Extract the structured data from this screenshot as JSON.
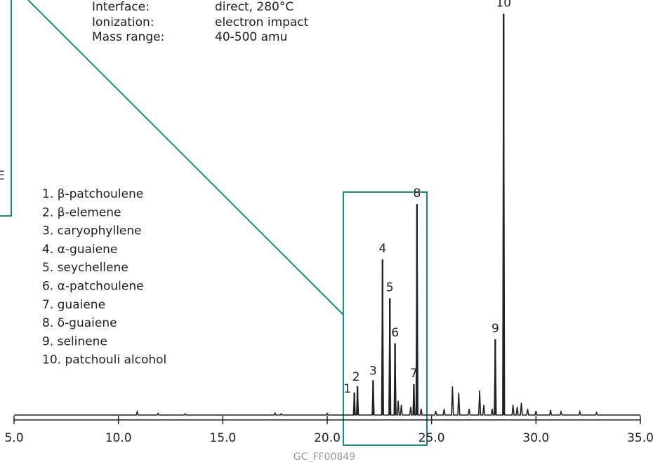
{
  "parameters": [
    {
      "label": "Interface:",
      "value": "direct, 280°C"
    },
    {
      "label": "Ionization:",
      "value": "electron impact"
    },
    {
      "label": "Mass range:",
      "value": "40-500 amu"
    }
  ],
  "side_tick_label": "E",
  "legend": [
    "1. β-patchoulene",
    "2. β-elemene",
    "3. caryophyllene",
    "4. α-guaiene",
    "5. seychellene",
    "6. α-patchoulene",
    "7. guaiene",
    "8. δ-guaiene",
    "9. selinene",
    "10. patchouli alcohol"
  ],
  "watermark": "GC_FF00849",
  "colors": {
    "trace": "#222222",
    "highlight_box": "#1f8a7a"
  },
  "chart_data": {
    "type": "line",
    "title": "",
    "xlabel": "",
    "ylabel": "",
    "xlim": [
      5.0,
      35.0
    ],
    "ylim": [
      0,
      100
    ],
    "xticks": [
      "5.0",
      "10.0",
      "15.0",
      "20.0",
      "25.0",
      "30.0",
      "35.0"
    ],
    "tick_values": [
      5,
      10,
      15,
      20,
      25,
      30,
      35
    ],
    "grid": false,
    "peaks": [
      {
        "label": "1",
        "rt": 21.3,
        "height": 5.5
      },
      {
        "label": "2",
        "rt": 21.45,
        "height": 7.0
      },
      {
        "label": "3",
        "rt": 22.2,
        "height": 8.5
      },
      {
        "label": "4",
        "rt": 22.65,
        "height": 38.0
      },
      {
        "label": "5",
        "rt": 23.0,
        "height": 28.5
      },
      {
        "label": "6",
        "rt": 23.25,
        "height": 17.5
      },
      {
        "label": "7",
        "rt": 24.15,
        "height": 7.5
      },
      {
        "label": "8",
        "rt": 24.3,
        "height": 51.5
      },
      {
        "label": "9",
        "rt": 28.05,
        "height": 18.5
      },
      {
        "label": "10",
        "rt": 28.45,
        "height": 98.0
      }
    ],
    "minor_peaks": [
      {
        "rt": 10.9,
        "height": 0.8
      },
      {
        "rt": 11.9,
        "height": 0.4
      },
      {
        "rt": 13.2,
        "height": 0.3
      },
      {
        "rt": 17.5,
        "height": 0.5
      },
      {
        "rt": 17.8,
        "height": 0.3
      },
      {
        "rt": 20.0,
        "height": 0.4
      },
      {
        "rt": 23.4,
        "height": 3.5
      },
      {
        "rt": 23.55,
        "height": 2.5
      },
      {
        "rt": 24.0,
        "height": 2.0
      },
      {
        "rt": 24.5,
        "height": 1.5
      },
      {
        "rt": 25.2,
        "height": 1.0
      },
      {
        "rt": 25.6,
        "height": 1.5
      },
      {
        "rt": 26.0,
        "height": 7.0
      },
      {
        "rt": 26.3,
        "height": 5.5
      },
      {
        "rt": 26.8,
        "height": 1.5
      },
      {
        "rt": 27.3,
        "height": 6.0
      },
      {
        "rt": 27.5,
        "height": 2.5
      },
      {
        "rt": 27.9,
        "height": 1.5
      },
      {
        "rt": 28.9,
        "height": 2.5
      },
      {
        "rt": 29.1,
        "height": 2.0
      },
      {
        "rt": 29.3,
        "height": 3.0
      },
      {
        "rt": 29.6,
        "height": 1.5
      },
      {
        "rt": 30.0,
        "height": 1.0
      },
      {
        "rt": 30.7,
        "height": 1.2
      },
      {
        "rt": 31.2,
        "height": 0.8
      },
      {
        "rt": 32.1,
        "height": 0.8
      },
      {
        "rt": 32.9,
        "height": 0.6
      }
    ]
  }
}
